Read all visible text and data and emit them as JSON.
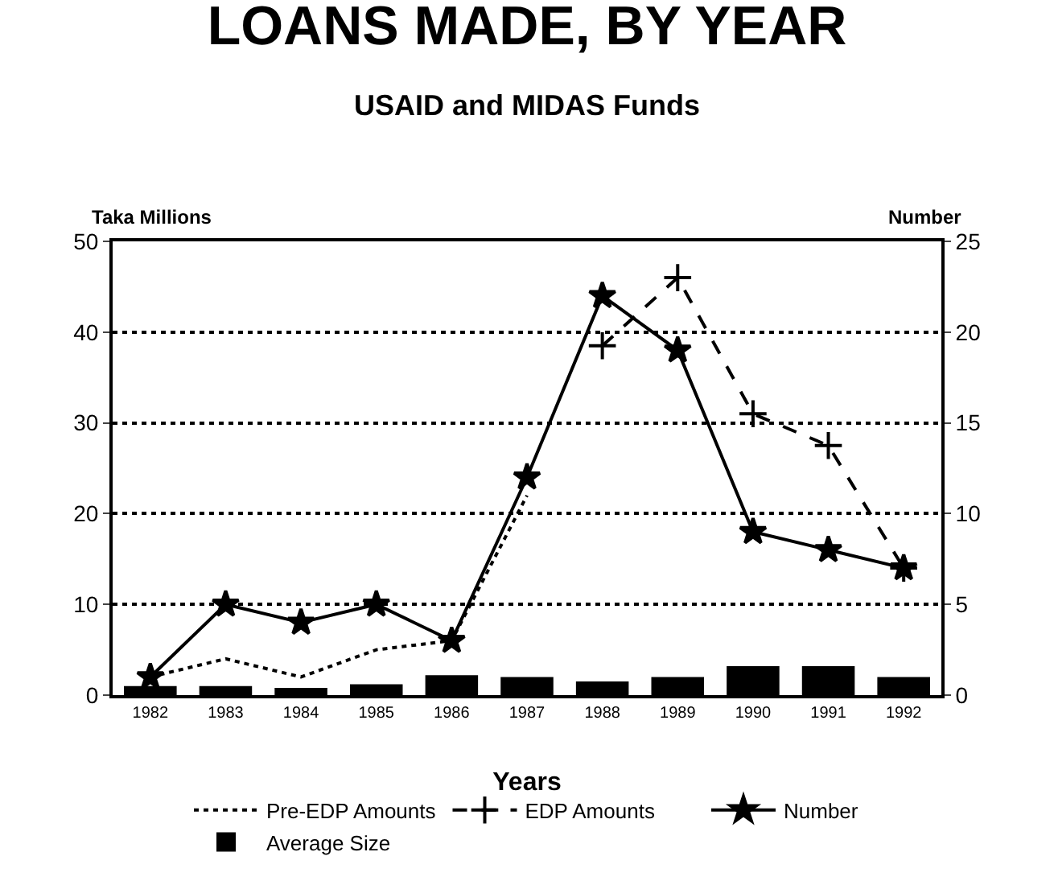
{
  "chart_data": {
    "type": "line",
    "title": "LOANS MADE, BY YEAR",
    "subtitle": "USAID and MIDAS Funds",
    "xlabel": "Years",
    "ylabel": "Taka Millions",
    "y2label": "Number",
    "categories": [
      "1982",
      "1983",
      "1984",
      "1985",
      "1986",
      "1987",
      "1988",
      "1989",
      "1990",
      "1991",
      "1992"
    ],
    "series": [
      {
        "name": "Pre-EDP Amounts",
        "color": "#000000",
        "marker": "none",
        "line_style": "dotted",
        "values": [
          2,
          4,
          2,
          5,
          6,
          22,
          null,
          null,
          null,
          null,
          null
        ]
      },
      {
        "name": "EDP Amounts",
        "color": "#000000",
        "marker": "cross",
        "line_style": "dashed",
        "values": [
          null,
          null,
          null,
          null,
          null,
          null,
          38.5,
          46,
          31,
          27.5,
          14
        ]
      },
      {
        "name": "Number",
        "axis": "y2",
        "color": "#000000",
        "marker": "star",
        "line_style": "solid",
        "values": [
          1,
          5,
          4,
          5,
          3,
          12,
          22,
          19,
          9,
          8,
          7
        ]
      },
      {
        "name": "Average Size",
        "type": "bar",
        "color": "#000000",
        "values": [
          1,
          1,
          0.8,
          1.2,
          2.2,
          2,
          1.5,
          2,
          3.2,
          3.2,
          2
        ]
      }
    ],
    "ylim": [
      0,
      50
    ],
    "yticks": [
      0,
      10,
      20,
      30,
      40,
      50
    ],
    "y2lim": [
      0,
      25
    ],
    "y2ticks": [
      0,
      5,
      10,
      15,
      20,
      25
    ],
    "grid": "y",
    "legend": "bottom"
  }
}
